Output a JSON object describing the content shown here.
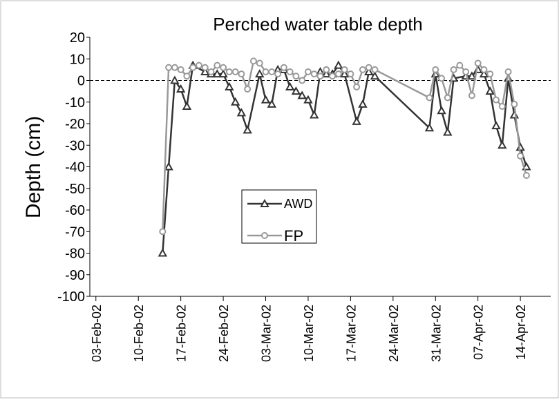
{
  "chart_data": {
    "type": "line",
    "title": "Perched water table  depth",
    "y_label": "Depth (cm)",
    "xlim": [
      "02-Feb-02",
      "19-Apr-02"
    ],
    "xticks": [
      "03-Feb-02",
      "10-Feb-02",
      "17-Feb-02",
      "24-Feb-02",
      "03-Mar-02",
      "10-Mar-02",
      "17-Mar-02",
      "24-Mar-02",
      "31-Mar-02",
      "07-Apr-02",
      "14-Apr-02"
    ],
    "ylim": [
      -100,
      20
    ],
    "yticks": [
      -100,
      -90,
      -80,
      -70,
      -60,
      -50,
      -40,
      -30,
      -20,
      -10,
      0,
      10,
      20
    ],
    "reference_line": 0,
    "series": [
      {
        "name": "AWD",
        "color": "#333333",
        "marker": "triangle",
        "x": [
          "14-Feb-02",
          "15-Feb-02",
          "16-Feb-02",
          "17-Feb-02",
          "18-Feb-02",
          "19-Feb-02",
          "21-Feb-02",
          "22-Feb-02",
          "23-Feb-02",
          "24-Feb-02",
          "25-Feb-02",
          "26-Feb-02",
          "27-Feb-02",
          "28-Feb-02",
          "02-Mar-02",
          "03-Mar-02",
          "04-Mar-02",
          "05-Mar-02",
          "06-Mar-02",
          "07-Mar-02",
          "08-Mar-02",
          "09-Mar-02",
          "10-Mar-02",
          "11-Mar-02",
          "12-Mar-02",
          "13-Mar-02",
          "14-Mar-02",
          "15-Mar-02",
          "16-Mar-02",
          "18-Mar-02",
          "19-Mar-02",
          "20-Mar-02",
          "21-Mar-02",
          "30-Mar-02",
          "31-Mar-02",
          "01-Apr-02",
          "02-Apr-02",
          "03-Apr-02",
          "05-Apr-02",
          "06-Apr-02",
          "07-Apr-02",
          "08-Apr-02",
          "09-Apr-02",
          "10-Apr-02",
          "11-Apr-02",
          "12-Apr-02",
          "13-Apr-02",
          "14-Apr-02",
          "15-Apr-02"
        ],
        "values": [
          -80,
          -40,
          0,
          -4,
          -12,
          7,
          4,
          3,
          3,
          3,
          -3,
          -10,
          -15,
          -23,
          3,
          -9,
          -11,
          5,
          5,
          -3,
          -5,
          -7,
          -9,
          -16,
          4,
          3,
          3,
          7,
          3,
          -19,
          -11,
          4,
          2,
          -22,
          3,
          -14,
          -24,
          1,
          2,
          2,
          5,
          3,
          -5,
          -21,
          -30,
          1,
          -16,
          -31,
          -40
        ]
      },
      {
        "name": "FP",
        "color": "#999999",
        "marker": "circle",
        "x": [
          "14-Feb-02",
          "15-Feb-02",
          "16-Feb-02",
          "17-Feb-02",
          "18-Feb-02",
          "19-Feb-02",
          "20-Feb-02",
          "21-Feb-02",
          "22-Feb-02",
          "23-Feb-02",
          "24-Feb-02",
          "25-Feb-02",
          "26-Feb-02",
          "27-Feb-02",
          "28-Feb-02",
          "01-Mar-02",
          "02-Mar-02",
          "03-Mar-02",
          "04-Mar-02",
          "05-Mar-02",
          "06-Mar-02",
          "07-Mar-02",
          "08-Mar-02",
          "09-Mar-02",
          "10-Mar-02",
          "11-Mar-02",
          "12-Mar-02",
          "13-Mar-02",
          "14-Mar-02",
          "15-Mar-02",
          "16-Mar-02",
          "17-Mar-02",
          "18-Mar-02",
          "19-Mar-02",
          "20-Mar-02",
          "21-Mar-02",
          "30-Mar-02",
          "31-Mar-02",
          "01-Apr-02",
          "02-Apr-02",
          "03-Apr-02",
          "04-Apr-02",
          "05-Apr-02",
          "06-Apr-02",
          "07-Apr-02",
          "08-Apr-02",
          "09-Apr-02",
          "10-Apr-02",
          "11-Apr-02",
          "12-Apr-02",
          "13-Apr-02",
          "14-Apr-02",
          "15-Apr-02"
        ],
        "values": [
          -70,
          6,
          6,
          5,
          2,
          6,
          7,
          6,
          4,
          7,
          6,
          4,
          4,
          3,
          -4,
          9,
          8,
          4,
          4,
          3,
          6,
          4,
          2,
          0,
          4,
          3,
          2,
          5,
          2,
          3,
          5,
          3,
          -3,
          5,
          6,
          5,
          -8,
          5,
          1,
          -8,
          5,
          7,
          4,
          -7,
          8,
          5,
          3,
          -9,
          -12,
          4,
          -11,
          -35,
          -44
        ]
      }
    ]
  }
}
